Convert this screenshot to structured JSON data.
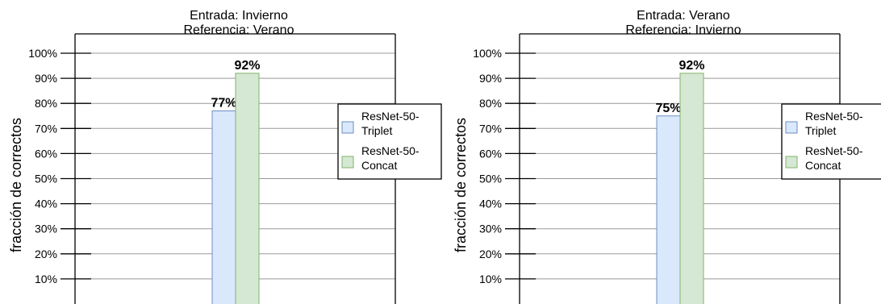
{
  "chart_data": [
    {
      "type": "bar",
      "title": "Entrada: Invierno",
      "subtitle": "Referencia: Verano",
      "ylabel": "fracción de correctos",
      "xlabel": "",
      "ylim": [
        0,
        100
      ],
      "yticks": [
        "10%",
        "20%",
        "30%",
        "40%",
        "50%",
        "60%",
        "70%",
        "80%",
        "90%",
        "100%"
      ],
      "series": [
        {
          "name": "ResNet-50-Triplet",
          "values": [
            77
          ],
          "label": "77%",
          "fill": "#dae8fc",
          "stroke": "#6c8ebf"
        },
        {
          "name": "ResNet-50-Concat",
          "values": [
            92
          ],
          "label": "92%",
          "fill": "#d5e8d4",
          "stroke": "#82b366"
        }
      ],
      "legend": {
        "placement": "right",
        "entries": [
          [
            "ResNet-50-",
            "Triplet"
          ],
          [
            "ResNet-50-",
            "Concat"
          ]
        ]
      },
      "grid": true
    },
    {
      "type": "bar",
      "title": "Entrada: Verano",
      "subtitle": "Referencia: Invierno",
      "ylabel": "fracción de correctos",
      "xlabel": "",
      "ylim": [
        0,
        100
      ],
      "yticks": [
        "10%",
        "20%",
        "30%",
        "40%",
        "50%",
        "60%",
        "70%",
        "80%",
        "90%",
        "100%"
      ],
      "series": [
        {
          "name": "ResNet-50-Triplet",
          "values": [
            75
          ],
          "label": "75%",
          "fill": "#dae8fc",
          "stroke": "#6c8ebf"
        },
        {
          "name": "ResNet-50-Concat",
          "values": [
            92
          ],
          "label": "92%",
          "fill": "#d5e8d4",
          "stroke": "#82b366"
        }
      ],
      "legend": {
        "placement": "right",
        "entries": [
          [
            "ResNet-50-",
            "Triplet"
          ],
          [
            "ResNet-50-",
            "Concat"
          ]
        ]
      },
      "grid": true
    }
  ]
}
